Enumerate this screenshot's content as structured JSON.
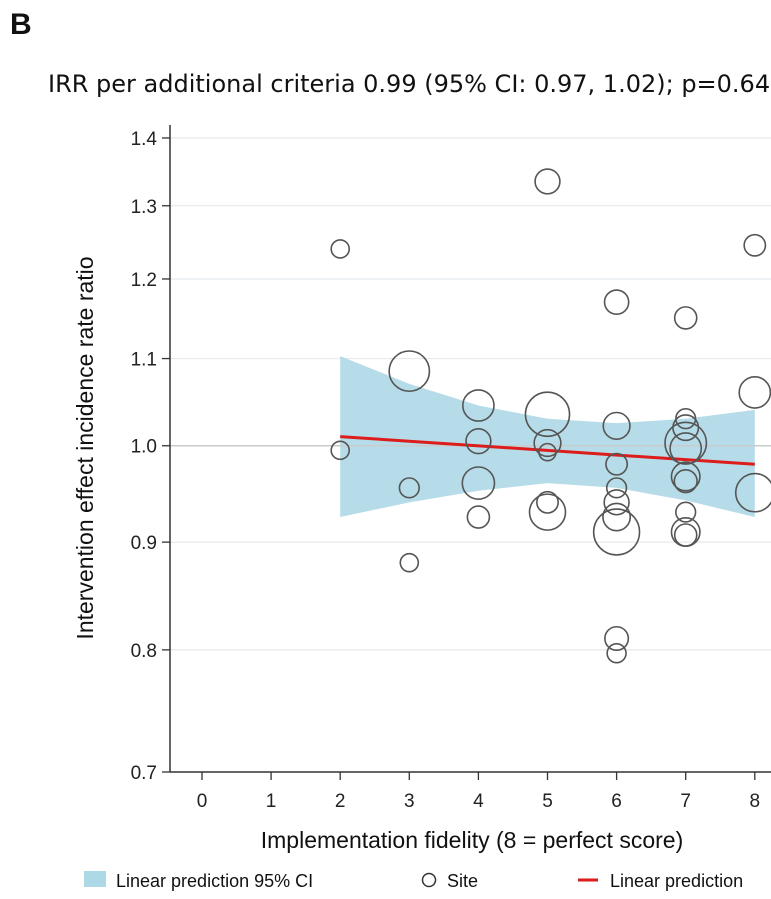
{
  "panel_label": "B",
  "chart_data": {
    "type": "scatter",
    "title": "IRR per additional criteria 0.99 (95% CI: 0.97, 1.02); p=0.640",
    "xlabel": "Implementation fidelity (8 = perfect score)",
    "ylabel": "Intervention effect incidence rate ratio",
    "x_ticks": [
      "0",
      "1",
      "2",
      "3",
      "4",
      "5",
      "6",
      "7",
      "8"
    ],
    "y_ticks": [
      "0.7",
      "0.8",
      "0.9",
      "1.0",
      "1.1",
      "1.2",
      "1.3",
      "1.4"
    ],
    "y_scale": "log",
    "xlim": [
      -0.4,
      8.2
    ],
    "ylim": [
      0.7,
      1.42
    ],
    "reference_line_y": 1.0,
    "grid": "horizontal",
    "colors": {
      "ci_band": "#add8e6",
      "prediction_line": "#dd1c1c",
      "site_marker": "#555555"
    },
    "legend": {
      "position": "bottom",
      "entries": [
        {
          "label": "Linear prediction 95% CI",
          "symbol": "band"
        },
        {
          "label": "Site",
          "symbol": "hollow-circle"
        },
        {
          "label": "Linear prediction",
          "symbol": "line"
        }
      ]
    },
    "series": [
      {
        "name": "Site",
        "kind": "hollow-circle",
        "note_size": "relative marker weight",
        "points": [
          {
            "x": 2,
            "y": 1.24,
            "size": 1
          },
          {
            "x": 2,
            "y": 0.995,
            "size": 1
          },
          {
            "x": 3,
            "y": 1.085,
            "size": 5
          },
          {
            "x": 3,
            "y": 0.955,
            "size": 1.2
          },
          {
            "x": 3,
            "y": 0.88,
            "size": 1
          },
          {
            "x": 4,
            "y": 1.045,
            "size": 3
          },
          {
            "x": 4,
            "y": 1.005,
            "size": 1.9
          },
          {
            "x": 4,
            "y": 0.96,
            "size": 3.2
          },
          {
            "x": 4,
            "y": 0.925,
            "size": 1.5
          },
          {
            "x": 5,
            "y": 1.335,
            "size": 1.9
          },
          {
            "x": 5,
            "y": 1.035,
            "size": 6
          },
          {
            "x": 5,
            "y": 1.003,
            "size": 2.2
          },
          {
            "x": 5,
            "y": 0.993,
            "size": 0.9
          },
          {
            "x": 5,
            "y": 0.94,
            "size": 1.4
          },
          {
            "x": 5,
            "y": 0.93,
            "size": 4
          },
          {
            "x": 6,
            "y": 1.17,
            "size": 1.8
          },
          {
            "x": 6,
            "y": 1.022,
            "size": 2.2
          },
          {
            "x": 6,
            "y": 0.98,
            "size": 1.4
          },
          {
            "x": 6,
            "y": 0.955,
            "size": 1.2
          },
          {
            "x": 6,
            "y": 0.94,
            "size": 1.9
          },
          {
            "x": 6,
            "y": 0.925,
            "size": 2.3
          },
          {
            "x": 6,
            "y": 0.91,
            "size": 6.5
          },
          {
            "x": 6,
            "y": 0.81,
            "size": 1.7
          },
          {
            "x": 6,
            "y": 0.797,
            "size": 1.1
          },
          {
            "x": 7,
            "y": 1.15,
            "size": 1.5
          },
          {
            "x": 7,
            "y": 1.03,
            "size": 1.2
          },
          {
            "x": 7,
            "y": 1.02,
            "size": 2
          },
          {
            "x": 7,
            "y": 1.003,
            "size": 5.3
          },
          {
            "x": 7,
            "y": 0.997,
            "size": 3
          },
          {
            "x": 7,
            "y": 0.967,
            "size": 2.5
          },
          {
            "x": 7,
            "y": 0.962,
            "size": 1.6
          },
          {
            "x": 7,
            "y": 0.93,
            "size": 1.2
          },
          {
            "x": 7,
            "y": 0.91,
            "size": 2.5
          },
          {
            "x": 7,
            "y": 0.907,
            "size": 1.5
          },
          {
            "x": 8,
            "y": 1.245,
            "size": 1.4
          },
          {
            "x": 8,
            "y": 1.06,
            "size": 3
          },
          {
            "x": 8,
            "y": 0.95,
            "size": 4.5
          }
        ]
      },
      {
        "name": "Linear prediction",
        "kind": "line",
        "points": [
          {
            "x": 2,
            "y": 1.01
          },
          {
            "x": 8,
            "y": 0.98
          }
        ]
      },
      {
        "name": "Linear prediction 95% CI",
        "kind": "band",
        "x": [
          2,
          3,
          4,
          5,
          6,
          7,
          8
        ],
        "lower": [
          0.925,
          0.94,
          0.952,
          0.96,
          0.955,
          0.942,
          0.925
        ],
        "upper": [
          1.103,
          1.07,
          1.045,
          1.03,
          1.025,
          1.03,
          1.04
        ]
      }
    ]
  }
}
